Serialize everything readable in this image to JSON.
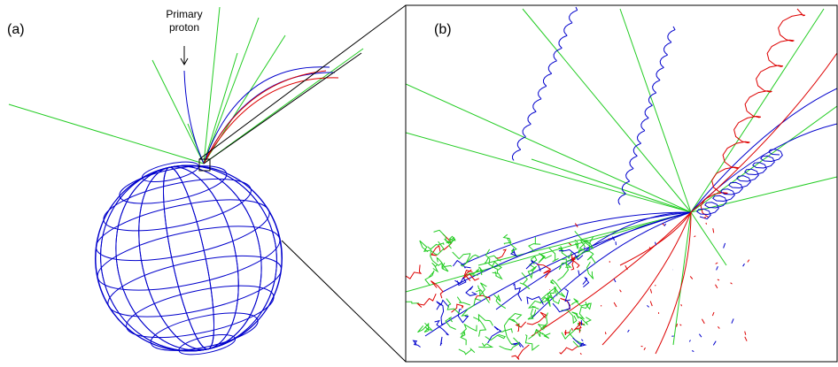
{
  "panel_a": {
    "label": "(a)",
    "annotation": [
      "Primary",
      "proton"
    ]
  },
  "panel_b": {
    "label": "(b)"
  }
}
